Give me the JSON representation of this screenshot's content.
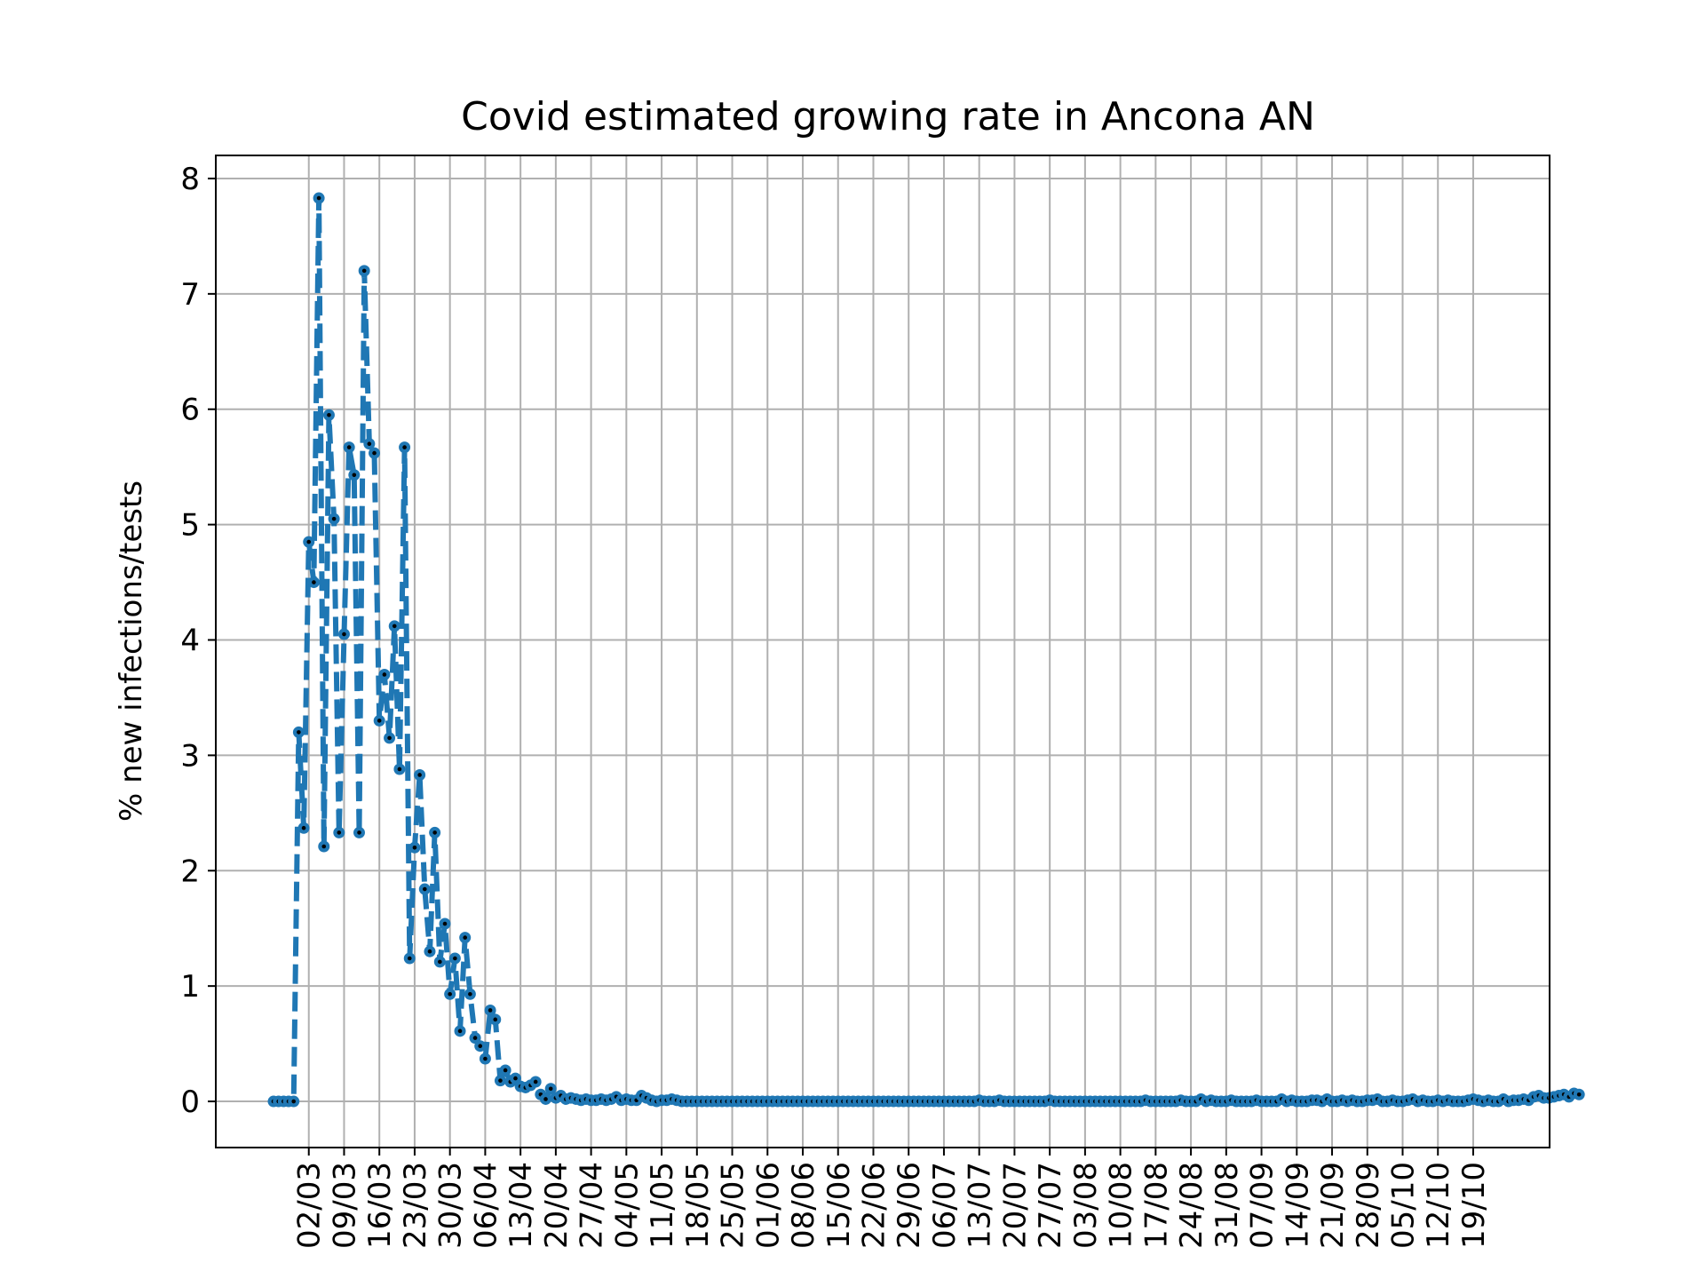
{
  "chart_data": {
    "type": "line",
    "title": "Covid estimated growing rate in Ancona AN",
    "xlabel": "",
    "ylabel": "% new infections/tests",
    "x_start": "2020-02-24",
    "ylim": [
      -0.4,
      8.2
    ],
    "yticks": [
      0,
      1,
      2,
      3,
      4,
      5,
      6,
      7,
      8
    ],
    "xtick_labels": [
      "02/03",
      "09/03",
      "16/03",
      "23/03",
      "30/03",
      "06/04",
      "13/04",
      "20/04",
      "27/04",
      "04/05",
      "11/05",
      "18/05",
      "25/05",
      "01/06",
      "08/06",
      "15/06",
      "22/06",
      "29/06",
      "06/07",
      "13/07",
      "20/07",
      "27/07",
      "03/08",
      "10/08",
      "17/08",
      "24/08",
      "31/08",
      "07/09",
      "14/09",
      "21/09",
      "28/09",
      "05/10",
      "12/10",
      "19/10"
    ],
    "xtick_day_index": [
      7,
      14,
      21,
      28,
      35,
      42,
      49,
      56,
      63,
      70,
      77,
      84,
      91,
      98,
      105,
      112,
      119,
      126,
      133,
      140,
      147,
      154,
      161,
      168,
      175,
      182,
      189,
      196,
      203,
      210,
      217,
      224,
      231,
      238
    ],
    "grid": true,
    "line_color": "#1f77b4",
    "marker_color": "#000000",
    "series": [
      {
        "values": [
          0,
          0,
          0,
          0,
          0,
          3.2,
          2.37,
          4.85,
          4.5,
          7.83,
          2.21,
          5.95,
          5.05,
          2.33,
          4.05,
          5.67,
          5.43,
          2.33,
          7.2,
          5.7,
          5.62,
          3.3,
          3.7,
          3.15,
          4.12,
          2.88,
          5.67,
          1.24,
          2.2,
          2.83,
          1.84,
          1.3,
          2.33,
          1.21,
          1.54,
          0.93,
          1.24,
          0.61,
          1.42,
          0.93,
          0.55,
          0.48,
          0.37,
          0.79,
          0.71,
          0.18,
          0.27,
          0.17,
          0.2,
          0.13,
          0.12,
          0.14,
          0.17,
          0.06,
          0.02,
          0.11,
          0.03,
          0.05,
          0.02,
          0.03,
          0.02,
          0.01,
          0.02,
          0.01,
          0.01,
          0.02,
          0.01,
          0.02,
          0.04,
          0.01,
          0.02,
          0.01,
          0.01,
          0.05,
          0.03,
          0.01,
          0,
          0.01,
          0.01,
          0.02,
          0.01,
          0,
          0,
          0,
          0,
          0,
          0,
          0,
          0,
          0,
          0,
          0,
          0,
          0,
          0,
          0,
          0,
          0,
          0,
          0,
          0,
          0,
          0,
          0,
          0,
          0,
          0,
          0,
          0,
          0,
          0,
          0,
          0,
          0,
          0,
          0,
          0,
          0,
          0,
          0,
          0,
          0,
          0,
          0,
          0,
          0,
          0,
          0,
          0,
          0,
          0,
          0,
          0,
          0,
          0,
          0,
          0,
          0,
          0,
          0,
          0.01,
          0,
          0,
          0,
          0.01,
          0,
          0,
          0,
          0,
          0,
          0,
          0,
          0,
          0,
          0.01,
          0,
          0,
          0,
          0,
          0,
          0,
          0,
          0,
          0,
          0,
          0,
          0,
          0,
          0,
          0,
          0,
          0,
          0,
          0.01,
          0,
          0,
          0,
          0,
          0,
          0,
          0.01,
          0,
          0,
          0,
          0.02,
          0,
          0.01,
          0,
          0,
          0,
          0.01,
          0,
          0,
          0,
          0,
          0.01,
          0,
          0,
          0,
          0,
          0.02,
          0,
          0.01,
          0,
          0,
          0,
          0.01,
          0.01,
          0,
          0.02,
          0,
          0,
          0.01,
          0,
          0.01,
          0,
          0,
          0.01,
          0.01,
          0.02,
          0,
          0,
          0.01,
          0,
          0,
          0.01,
          0.02,
          0,
          0.01,
          0,
          0,
          0.01,
          0,
          0.01,
          0,
          0,
          0,
          0.01,
          0.02,
          0.01,
          0,
          0.01,
          0,
          0,
          0.02,
          0,
          0.01,
          0.01,
          0.02,
          0.01,
          0.04,
          0.05,
          0.03,
          0.03,
          0.04,
          0.05,
          0.06,
          0.04,
          0.07,
          0.06
        ]
      }
    ]
  }
}
